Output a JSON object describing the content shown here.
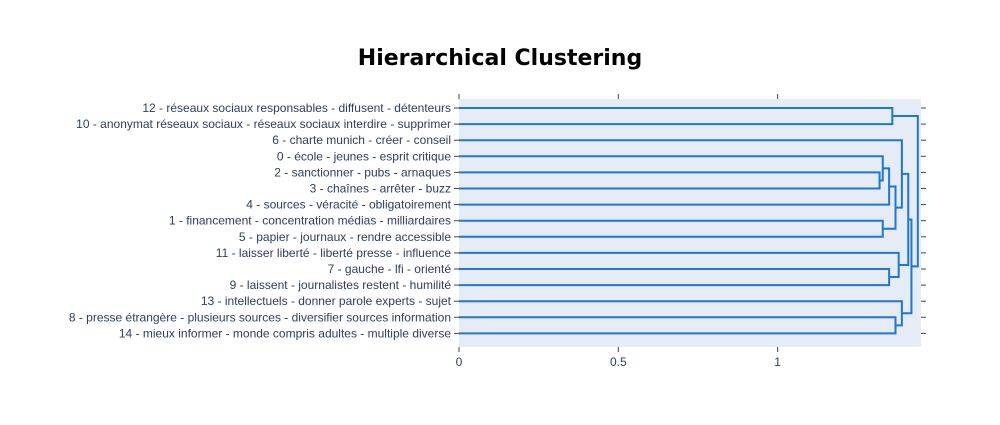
{
  "chart_data": {
    "type": "dendrogram",
    "orientation": "horizontal",
    "title": "Hierarchical Clustering",
    "xlabel": "",
    "ylabel": "",
    "xlim": [
      0,
      1.45
    ],
    "xticks": [
      0,
      0.5,
      1
    ],
    "xtick_labels": [
      "0",
      "0.5",
      "1"
    ],
    "grid": false,
    "leaves": [
      "12 - réseaux sociaux responsables - diffusent - détenteurs",
      "10 - anonymat réseaux sociaux - réseaux sociaux interdire - supprimer",
      "6 - charte munich - créer - conseil",
      "0 - école - jeunes - esprit critique",
      "2 - sanctionner - pubs - arnaques",
      "3 - chaînes - arrêter - buzz",
      "4 - sources - véracité - obligatoirement",
      "1 - financement - concentration médias - milliardaires",
      "5 - papier - journaux - rendre accessible",
      "11 - laisser liberté - liberté presse - influence",
      "7 - gauche - lfi - orienté",
      "9 - laissent - journalistes restent - humilité",
      "13 - intellectuels - donner parole experts - sujet",
      "8 - presse étrangère - plusieurs sources - diversifier sources information",
      "14 - mieux informer - monde compris adultes - multiple diverse"
    ],
    "merges": [
      {
        "a": 4,
        "b": 5,
        "height": 1.32
      },
      {
        "a": 3,
        "b": "m1",
        "height": 1.33
      },
      {
        "a": "m2",
        "b": 6,
        "height": 1.35
      },
      {
        "a": 7,
        "b": 8,
        "height": 1.33
      },
      {
        "a": "m3",
        "b": "m4",
        "height": 1.37
      },
      {
        "a": 2,
        "b": "m5",
        "height": 1.39
      },
      {
        "a": 10,
        "b": 11,
        "height": 1.35
      },
      {
        "a": 9,
        "b": "m7",
        "height": 1.38
      },
      {
        "a": "m6",
        "b": "m8",
        "height": 1.41
      },
      {
        "a": 1,
        "b": 0,
        "height": 1.36
      },
      {
        "a": 14,
        "b": 13,
        "height": 1.37
      },
      {
        "a": 12,
        "b": "m11",
        "height": 1.39
      },
      {
        "a": "m9",
        "b": "m12",
        "height": 1.42
      },
      {
        "a": "m10",
        "b": "m13",
        "height": 1.44
      }
    ],
    "colors": {
      "link": "#1f77d0",
      "plot_bg": "#e5ecf6",
      "text": "#2a3f5f",
      "tick": "#444444"
    }
  }
}
